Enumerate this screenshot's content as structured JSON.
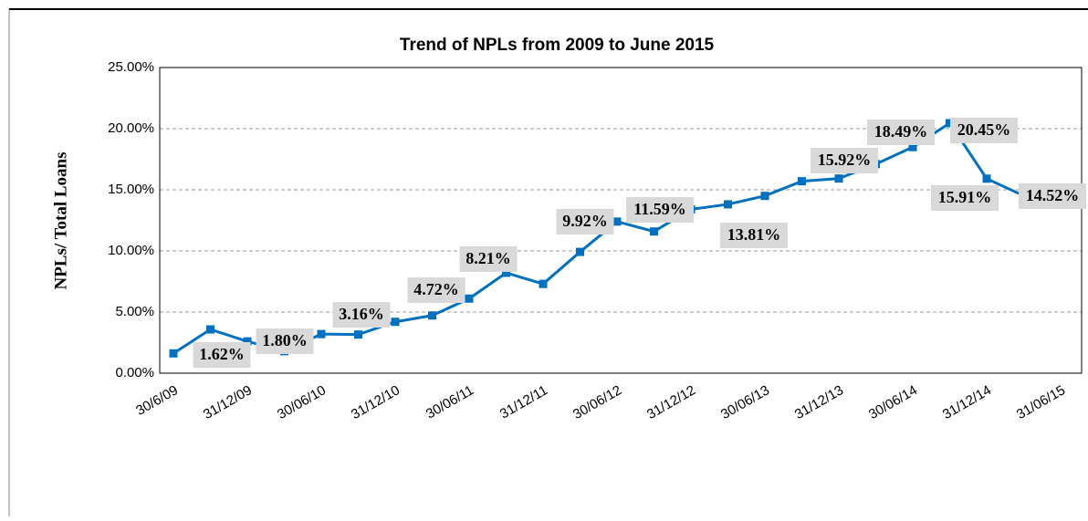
{
  "chart_data": {
    "type": "line",
    "title": "Trend of NPLs from 2009 to  June 2015",
    "y_label": "NPLs/ Total Loans",
    "categories": [
      "30/6/09",
      null,
      "31/12/09",
      null,
      "30/06/10",
      null,
      "31/12/10",
      null,
      "30/06/11",
      null,
      "31/12/11",
      null,
      "30/06/12",
      null,
      "31/12/12",
      null,
      "30/06/13",
      null,
      "31/12/13",
      null,
      "30/06/14",
      null,
      "31/12/14",
      null,
      "31/06/15"
    ],
    "series": [
      {
        "name": "NPLs/ Total Loans",
        "color": "#0070c0",
        "values": [
          1.62,
          3.58,
          2.6,
          1.8,
          3.2,
          3.16,
          4.2,
          4.72,
          6.1,
          8.21,
          7.3,
          9.92,
          12.4,
          11.59,
          13.4,
          13.81,
          14.5,
          15.7,
          15.92,
          17.1,
          18.49,
          20.45,
          15.91,
          14.52,
          null
        ],
        "value_labels": [
          "1.62%",
          null,
          null,
          "1.80%",
          null,
          "3.16%",
          null,
          "4.72%",
          null,
          "8.21%",
          null,
          "9.92%",
          null,
          "11.59%",
          null,
          "13.81%",
          null,
          null,
          "15.92%",
          null,
          "18.49%",
          "20.45%",
          "15.91%",
          "14.52%",
          null
        ]
      }
    ],
    "ylim": [
      0,
      25
    ],
    "yticks": [
      {
        "value": 0,
        "label": "0.00%"
      },
      {
        "value": 5,
        "label": "5.00%"
      },
      {
        "value": 10,
        "label": "10.00%"
      },
      {
        "value": 15,
        "label": "15.00%"
      },
      {
        "value": 20,
        "label": "20.00%"
      },
      {
        "value": 25,
        "label": "25.00%"
      }
    ],
    "grid": true
  }
}
